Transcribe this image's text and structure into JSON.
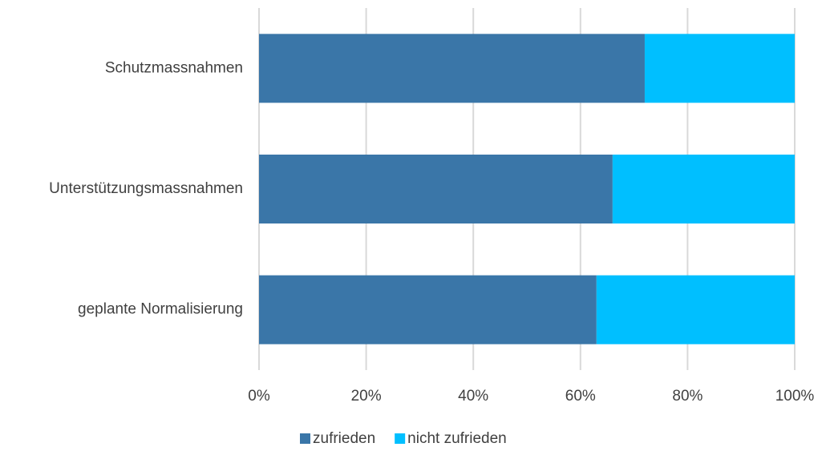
{
  "chart_data": {
    "type": "stacked-barh",
    "categories": [
      "Schutzmassnahmen",
      "Unterstützungsmassnahmen",
      "geplante Normalisierung"
    ],
    "series": [
      {
        "name": "zufrieden",
        "color": "#3a76a8",
        "values": [
          72,
          66,
          63
        ]
      },
      {
        "name": "nicht zufrieden",
        "color": "#00bfff",
        "values": [
          28,
          34,
          37
        ]
      }
    ],
    "xlim": [
      0,
      100
    ],
    "xticks": [
      {
        "value": 0,
        "label": "0%"
      },
      {
        "value": 20,
        "label": "20%"
      },
      {
        "value": 40,
        "label": "40%"
      },
      {
        "value": 60,
        "label": "60%"
      },
      {
        "value": 80,
        "label": "80%"
      },
      {
        "value": 100,
        "label": "100%"
      }
    ],
    "grid": true,
    "legend": "bottom"
  }
}
